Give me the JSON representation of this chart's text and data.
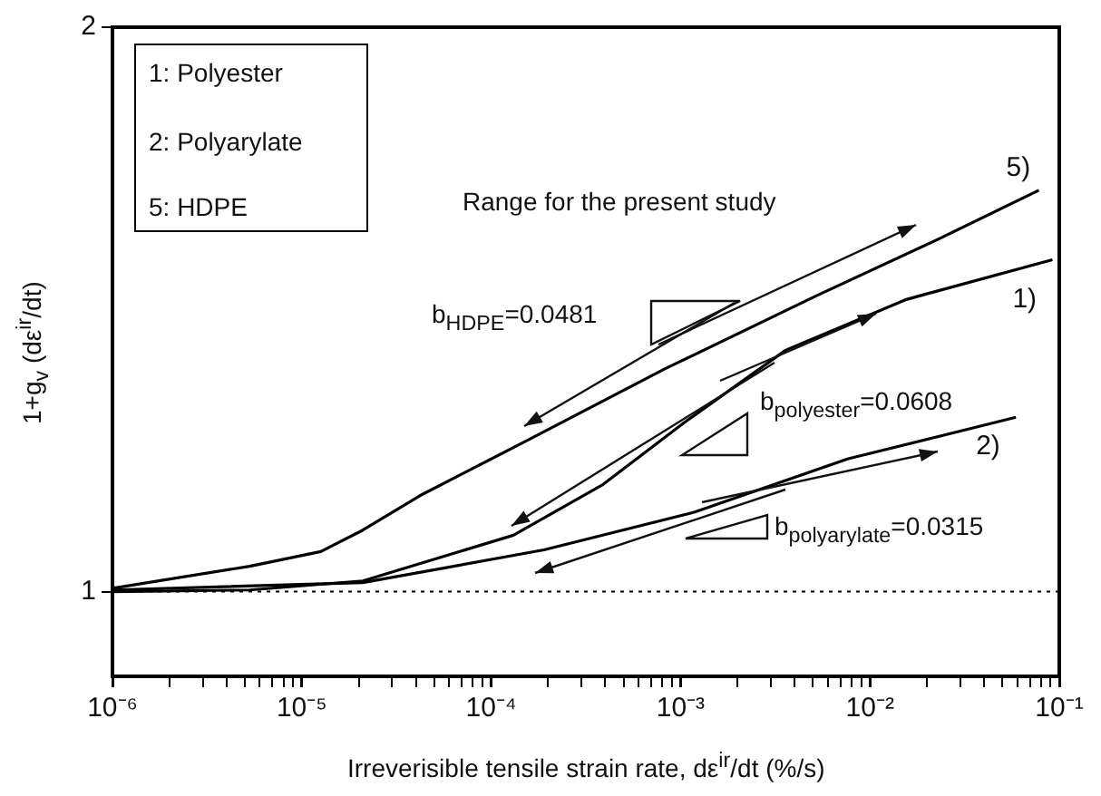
{
  "chart_data": {
    "type": "line",
    "xlabel": "Irreverisible tensile strain rate, dε$^{ir}$/dt (%/s)",
    "ylabel": "1+g$_{v}$ (dε$^{ir}$/dt)",
    "log": "x",
    "marker": "none",
    "line_style": "solid",
    "grid": false,
    "legend": false,
    "xlim": [
      1e-06,
      0.1
    ],
    "ylim": [
      0.85,
      2
    ],
    "xticks": [
      {
        "value": 1e-06,
        "label": "10⁻⁶"
      },
      {
        "value": 2e-06,
        "label": null
      },
      {
        "value": 3e-06,
        "label": null
      },
      {
        "value": 4e-06,
        "label": null
      },
      {
        "value": 5e-06,
        "label": null
      },
      {
        "value": 6e-06,
        "label": null
      },
      {
        "value": 7e-06,
        "label": null
      },
      {
        "value": 8e-06,
        "label": null
      },
      {
        "value": 9e-06,
        "label": null
      },
      {
        "value": 1e-05,
        "label": "10⁻⁵"
      },
      {
        "value": 2e-05,
        "label": null
      },
      {
        "value": 3e-05,
        "label": null
      },
      {
        "value": 4e-05,
        "label": null
      },
      {
        "value": 5e-05,
        "label": null
      },
      {
        "value": 6e-05,
        "label": null
      },
      {
        "value": 7e-05,
        "label": null
      },
      {
        "value": 8e-05,
        "label": null
      },
      {
        "value": 9e-05,
        "label": null
      },
      {
        "value": 0.0001,
        "label": "10⁻⁴"
      },
      {
        "value": 0.0002,
        "label": null
      },
      {
        "value": 0.0003,
        "label": null
      },
      {
        "value": 0.0004,
        "label": null
      },
      {
        "value": 0.0005,
        "label": null
      },
      {
        "value": 0.0006,
        "label": null
      },
      {
        "value": 0.0007,
        "label": null
      },
      {
        "value": 0.0008,
        "label": null
      },
      {
        "value": 0.0009,
        "label": null
      },
      {
        "value": 0.001,
        "label": "10⁻³"
      },
      {
        "value": 0.002,
        "label": null
      },
      {
        "value": 0.003,
        "label": null
      },
      {
        "value": 0.004,
        "label": null
      },
      {
        "value": 0.005,
        "label": null
      },
      {
        "value": 0.006,
        "label": null
      },
      {
        "value": 0.007,
        "label": null
      },
      {
        "value": 0.008,
        "label": null
      },
      {
        "value": 0.009,
        "label": null
      },
      {
        "value": 0.01,
        "label": "10⁻²"
      },
      {
        "value": 0.02,
        "label": null
      },
      {
        "value": 0.03,
        "label": null
      },
      {
        "value": 0.04,
        "label": null
      },
      {
        "value": 0.05,
        "label": null
      },
      {
        "value": 0.06,
        "label": null
      },
      {
        "value": 0.07,
        "label": null
      },
      {
        "value": 0.08,
        "label": null
      },
      {
        "value": 0.09,
        "label": null
      },
      {
        "value": 0.1,
        "label": "10⁻¹"
      }
    ],
    "yticks": [
      1,
      2
    ],
    "series": [
      {
        "name": "5)",
        "color": "#000000",
        "x": [
          1e-06,
          5.3e-06,
          1.26e-05,
          2.1e-05,
          4.2e-05,
          0.000153,
          0.00083,
          0.0052,
          0.0228,
          0.078
        ],
        "values": [
          1.006,
          1.045,
          1.071,
          1.109,
          1.17,
          1.267,
          1.395,
          1.524,
          1.624,
          1.711
        ]
      },
      {
        "name": "1)",
        "color": "#000000",
        "x": [
          1e-06,
          5.3e-06,
          2.1e-05,
          0.000131,
          0.00039,
          0.00104,
          0.0036,
          0.0157,
          0.092
        ],
        "values": [
          1.0,
          1.003,
          1.019,
          1.1,
          1.19,
          1.299,
          1.428,
          1.518,
          1.588
        ]
      },
      {
        "name": "2)",
        "color": "#000000",
        "x": [
          1e-06,
          2.1e-05,
          0.00019,
          0.00119,
          0.0076,
          0.059
        ],
        "values": [
          1.003,
          1.016,
          1.074,
          1.141,
          1.235,
          1.309
        ]
      }
    ],
    "ref_lines": [
      {
        "axis": "y",
        "value": 1,
        "color": "#000000",
        "line_style": "dotted"
      }
    ],
    "annotations": [
      "1: Polyester",
      "2: Polyarylate",
      "5: HDPE",
      "Range for the present study",
      "b$_{HDPE}$=0.0481",
      "b$_{polyester}$=0.0608",
      "b$_{polyarylate}$=0.0315"
    ]
  }
}
